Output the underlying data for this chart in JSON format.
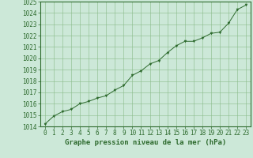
{
  "title": "Graphe pression niveau de la mer (hPa)",
  "x_values": [
    0,
    1,
    2,
    3,
    4,
    5,
    6,
    7,
    8,
    9,
    10,
    11,
    12,
    13,
    14,
    15,
    16,
    17,
    18,
    19,
    20,
    21,
    22,
    23
  ],
  "y_values": [
    1014.2,
    1014.9,
    1015.3,
    1015.5,
    1016.0,
    1016.2,
    1016.5,
    1016.7,
    1017.2,
    1017.6,
    1018.5,
    1018.9,
    1019.5,
    1019.8,
    1020.5,
    1021.1,
    1021.5,
    1021.5,
    1021.8,
    1022.2,
    1022.3,
    1023.1,
    1024.3,
    1024.7
  ],
  "y_min": 1014,
  "y_max": 1025,
  "y_ticks": [
    1014,
    1015,
    1016,
    1017,
    1018,
    1019,
    1020,
    1021,
    1022,
    1023,
    1024,
    1025
  ],
  "line_color": "#2d6a2d",
  "marker_color": "#2d6a2d",
  "bg_color": "#cce8d8",
  "grid_color": "#88bb88",
  "border_color": "#2d6a2d",
  "label_color": "#2d6a2d",
  "title_color": "#2d6a2d",
  "font_size_ticks": 5.5,
  "font_size_title": 6.5
}
